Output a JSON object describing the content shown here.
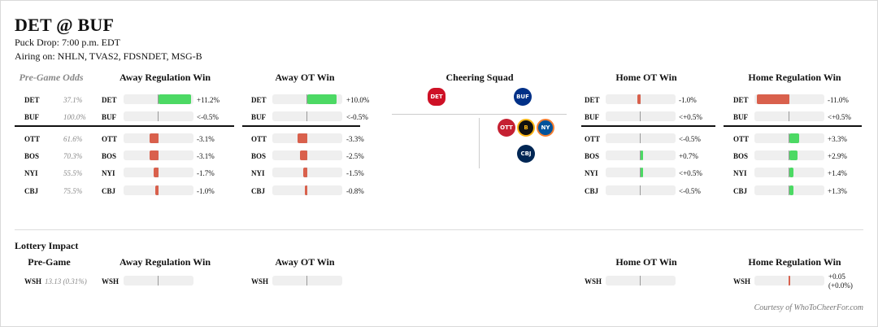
{
  "header": {
    "title": "DET @ BUF",
    "puck_drop": "Puck Drop: 7:00 p.m. EDT",
    "airing": "Airing on: NHLN, TVAS2, FDSNDET, MSG-B"
  },
  "columns": {
    "pregame": "Pre-Game Odds",
    "away_reg": "Away Regulation Win",
    "away_ot": "Away OT Win",
    "cheering": "Cheering Squad",
    "home_ot": "Home OT Win",
    "home_reg": "Home Regulation Win"
  },
  "teams": [
    {
      "abbr": "DET",
      "pregame": "37.1%",
      "away_reg": {
        "text": "+11.2%",
        "v": 11.2
      },
      "away_ot": {
        "text": "+10.0%",
        "v": 10.0
      },
      "home_ot": {
        "text": "-1.0%",
        "v": -1.0
      },
      "home_reg": {
        "text": "-11.0%",
        "v": -11.0
      }
    },
    {
      "abbr": "BUF",
      "pregame": "100.0%",
      "away_reg": {
        "text": "<-0.5%",
        "v": 0
      },
      "away_ot": {
        "text": "<-0.5%",
        "v": 0
      },
      "home_ot": {
        "text": "<+0.5%",
        "v": 0
      },
      "home_reg": {
        "text": "<+0.5%",
        "v": 0
      }
    },
    {
      "abbr": "OTT",
      "pregame": "61.6%",
      "away_reg": {
        "text": "-3.1%",
        "v": -3.1
      },
      "away_ot": {
        "text": "-3.3%",
        "v": -3.3
      },
      "home_ot": {
        "text": "<-0.5%",
        "v": 0
      },
      "home_reg": {
        "text": "+3.3%",
        "v": 3.3
      }
    },
    {
      "abbr": "BOS",
      "pregame": "70.3%",
      "away_reg": {
        "text": "-3.1%",
        "v": -3.1
      },
      "away_ot": {
        "text": "-2.5%",
        "v": -2.5
      },
      "home_ot": {
        "text": "+0.7%",
        "v": 0.7
      },
      "home_reg": {
        "text": "+2.9%",
        "v": 2.9
      }
    },
    {
      "abbr": "NYI",
      "pregame": "55.5%",
      "away_reg": {
        "text": "-1.7%",
        "v": -1.7
      },
      "away_ot": {
        "text": "-1.5%",
        "v": -1.5
      },
      "home_ot": {
        "text": "<+0.5%",
        "v": 0.3
      },
      "home_reg": {
        "text": "+1.4%",
        "v": 1.4
      }
    },
    {
      "abbr": "CBJ",
      "pregame": "75.5%",
      "away_reg": {
        "text": "-1.0%",
        "v": -1.0
      },
      "away_ot": {
        "text": "-0.8%",
        "v": -0.8
      },
      "home_ot": {
        "text": "<-0.5%",
        "v": 0
      },
      "home_reg": {
        "text": "+1.3%",
        "v": 1.3
      }
    }
  ],
  "cheering_logos": [
    {
      "team": "DET",
      "icon": "red-wings-logo-icon",
      "color": "#ce1126",
      "text": "DET"
    },
    {
      "team": "BUF",
      "icon": "sabres-logo-icon",
      "color": "#003087",
      "text": "BUF"
    },
    {
      "team": "OTT",
      "icon": "senators-logo-icon",
      "color": "#c52032",
      "text": "OTT"
    },
    {
      "team": "BOS",
      "icon": "bruins-logo-icon",
      "color": "#111111",
      "text": "B"
    },
    {
      "team": "NYI",
      "icon": "islanders-logo-icon",
      "color": "#00539b",
      "text": "NY"
    },
    {
      "team": "CBJ",
      "icon": "blue-jackets-logo-icon",
      "color": "#002654",
      "text": "CBJ"
    }
  ],
  "lottery": {
    "section_title": "Lottery Impact",
    "pregame_head": "Pre-Game",
    "team": "WSH",
    "pregame_value": "13.13 (0.31%)",
    "home_reg_value_1": "+0.05",
    "home_reg_value_2": "(+0.0%)",
    "home_reg_v": -0.05
  },
  "colors": {
    "positive": "#4cd964",
    "negative": "#d9604c",
    "track": "#efefef"
  },
  "credit": "Courtesy of WhoToCheerFor.com"
}
